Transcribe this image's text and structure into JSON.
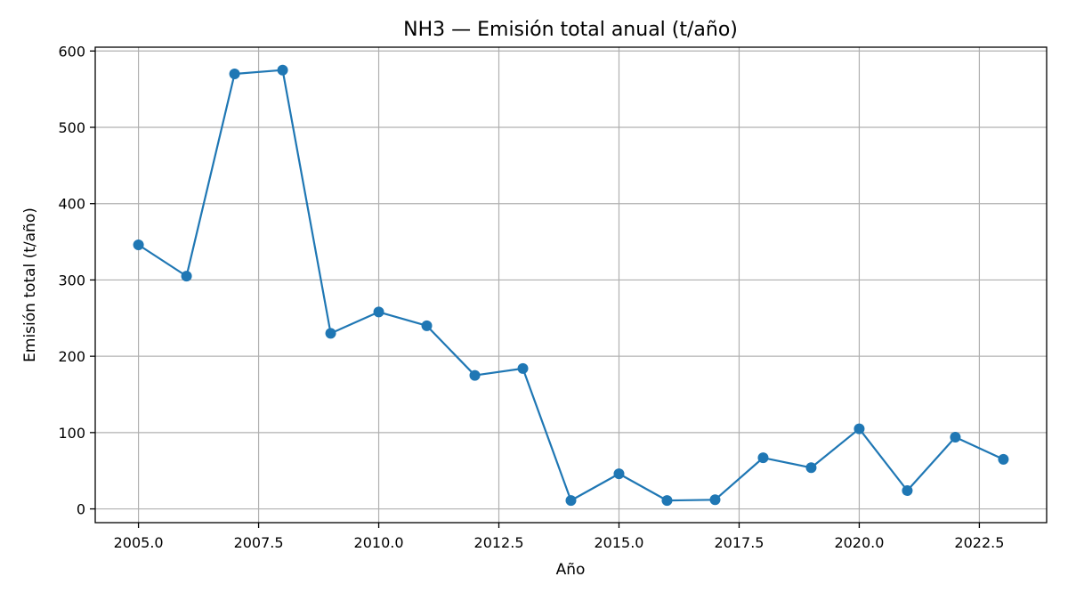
{
  "chart_data": {
    "type": "line",
    "title": "NH3 — Emisión total anual (t/año)",
    "xlabel": "Año",
    "ylabel": "Emisión total (t/año)",
    "xlim": [
      2004.1,
      2023.9
    ],
    "ylim": [
      -18,
      605
    ],
    "xticks": [
      2005.0,
      2007.5,
      2010.0,
      2012.5,
      2015.0,
      2017.5,
      2020.0,
      2022.5
    ],
    "xtick_labels": [
      "2005.0",
      "2007.5",
      "2010.0",
      "2012.5",
      "2015.0",
      "2017.5",
      "2020.0",
      "2022.5"
    ],
    "yticks": [
      0,
      100,
      200,
      300,
      400,
      500,
      600
    ],
    "ytick_labels": [
      "0",
      "100",
      "200",
      "300",
      "400",
      "500",
      "600"
    ],
    "grid": true,
    "series": [
      {
        "color": "#1f77b4",
        "marker": "circle",
        "x": [
          2005,
          2006,
          2007,
          2008,
          2009,
          2010,
          2011,
          2012,
          2013,
          2014,
          2015,
          2016,
          2017,
          2018,
          2019,
          2020,
          2021,
          2022,
          2023
        ],
        "y": [
          346,
          305,
          570,
          575,
          230,
          258,
          240,
          175,
          184,
          11,
          46,
          11,
          12,
          67,
          54,
          105,
          24,
          94,
          65
        ]
      }
    ]
  }
}
